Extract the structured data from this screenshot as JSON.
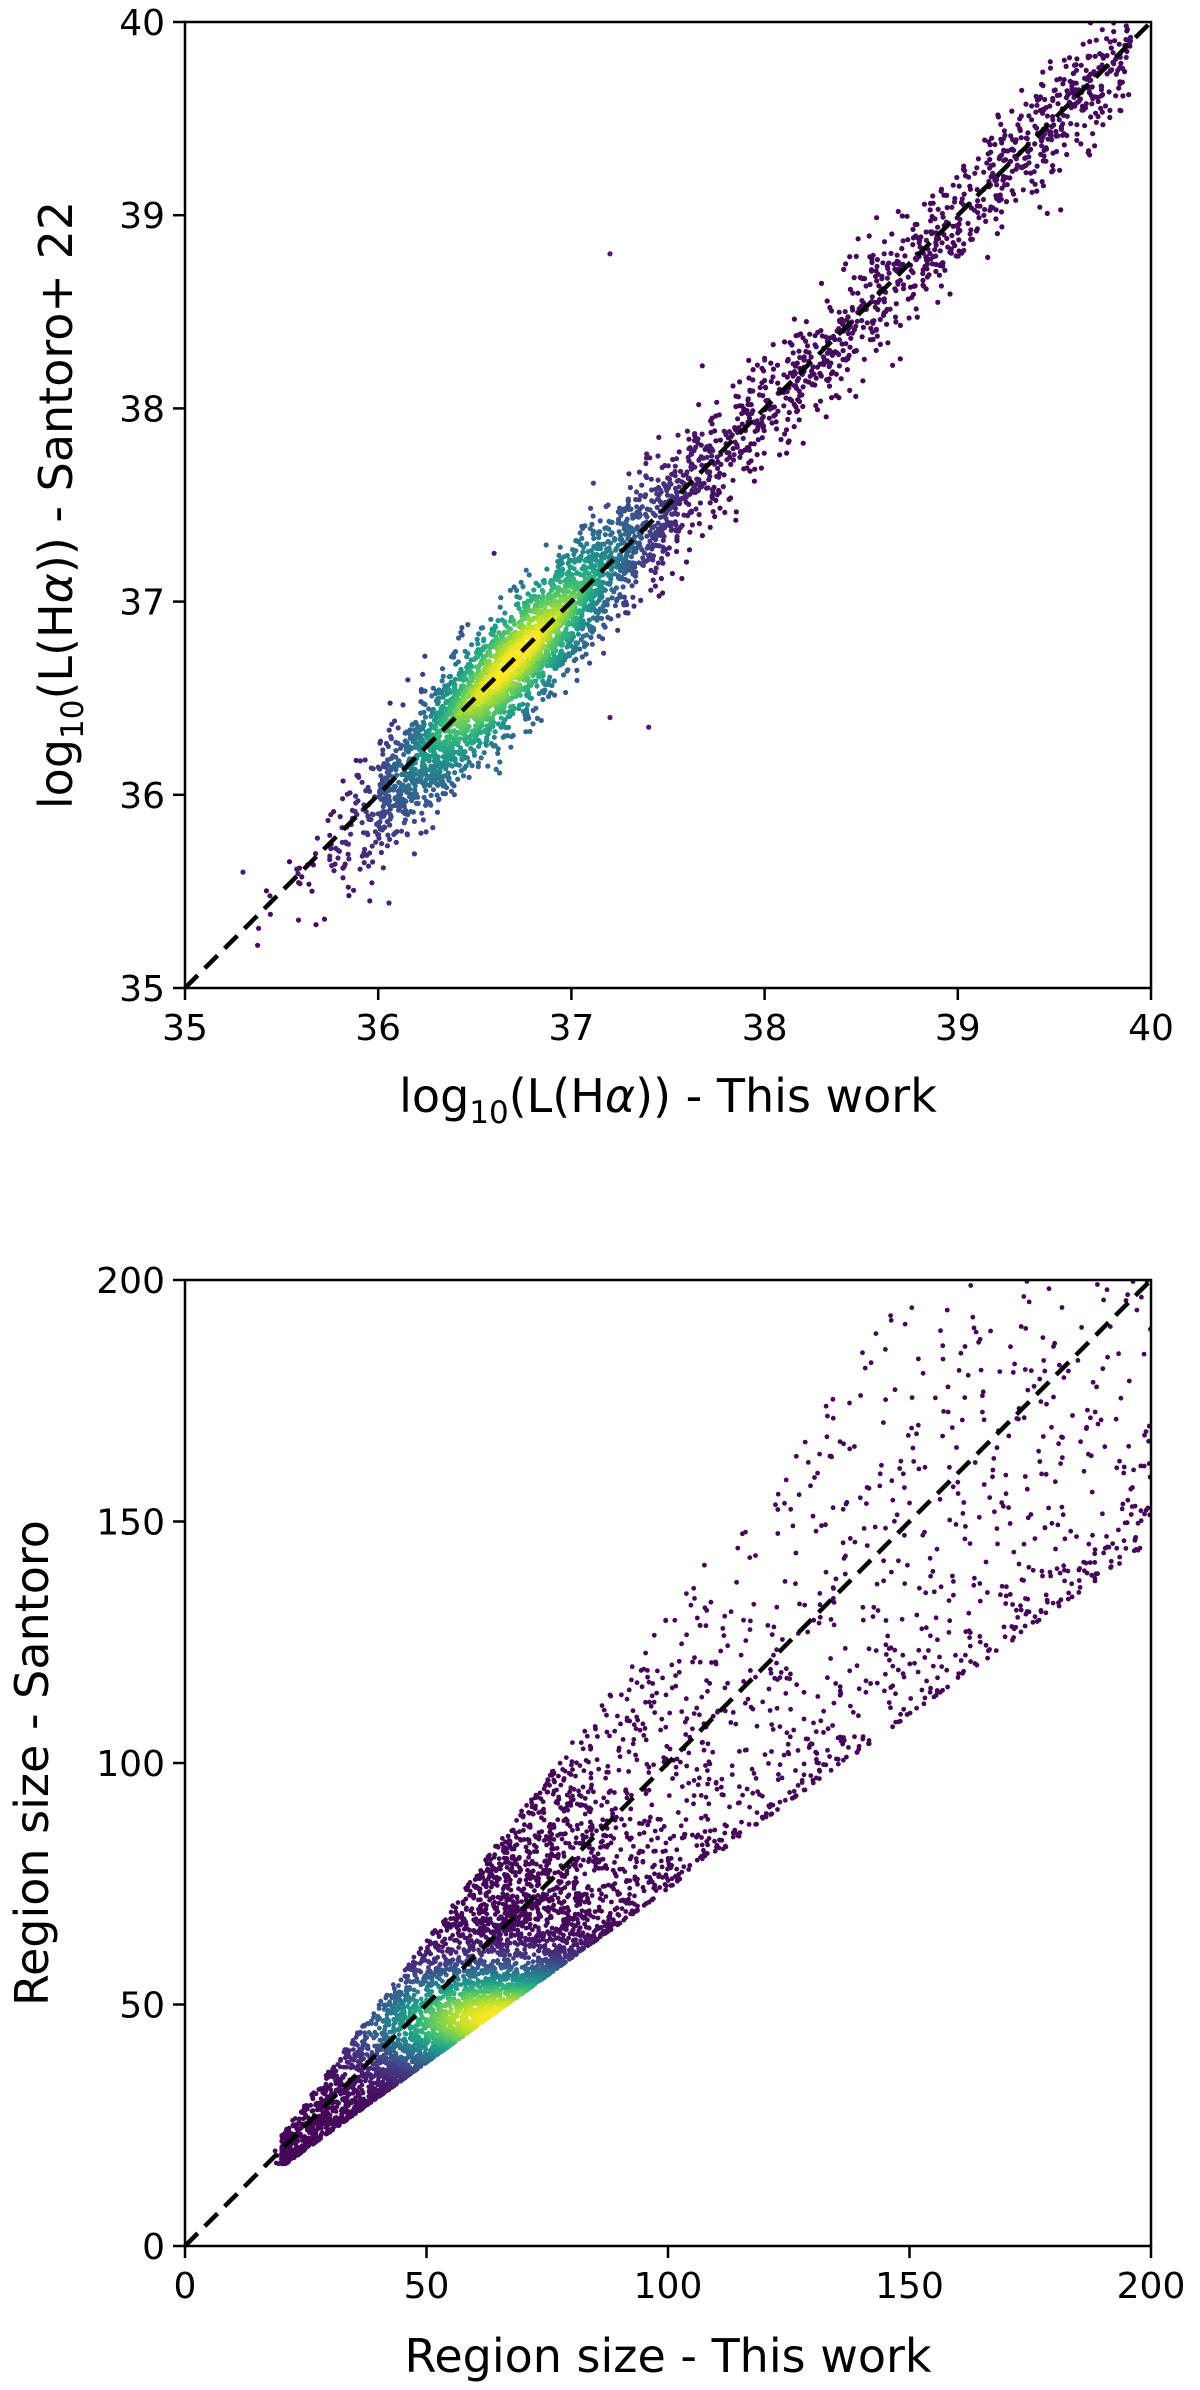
{
  "chart_data": [
    {
      "type": "scatter",
      "title": "",
      "xlabel": {
        "prefix": "log",
        "sub": "10",
        "main": "(L(H",
        "greek": "α",
        "suffix": ")) - This work"
      },
      "ylabel": {
        "prefix": "log",
        "sub": "10",
        "main": "(L(H",
        "greek": "α",
        "suffix": ")) - Santoro+ 22"
      },
      "xlim": [
        35,
        40
      ],
      "ylim": [
        35,
        40
      ],
      "xticks": [
        "35",
        "36",
        "37",
        "38",
        "39",
        "40"
      ],
      "yticks": [
        "35",
        "36",
        "37",
        "38",
        "39",
        "40"
      ],
      "reference_line": {
        "style": "dashed",
        "color": "#000000",
        "from": [
          35,
          40
        ],
        "to": [
          35,
          40
        ]
      },
      "colormap": "viridis (density)",
      "colors": {
        "low": "#440154",
        "mid": "#21918c",
        "high": "#fde725"
      },
      "grid": false,
      "series": [
        {
          "description_of_distribution": "tight cloud along y = x, densest near x≈36.7, y≈36.7",
          "density_peak": [
            36.7,
            36.7
          ],
          "x_extent": [
            35.3,
            39.95
          ],
          "y_extent": [
            35.4,
            39.95
          ],
          "scatter_width_dex": 0.15,
          "outliers": [
            [
              37.2,
              38.8
            ],
            [
              36.6,
              37.25
            ],
            [
              38.0,
              38.25
            ],
            [
              37.4,
              36.35
            ],
            [
              37.2,
              36.4
            ],
            [
              35.3,
              35.6
            ]
          ]
        }
      ]
    },
    {
      "type": "scatter",
      "title": "",
      "xlabel": "Region size - This work",
      "ylabel": "Region size - Santoro",
      "xlim": [
        0,
        200
      ],
      "ylim": [
        0,
        200
      ],
      "xticks": [
        "0",
        "50",
        "100",
        "150",
        "200"
      ],
      "yticks": [
        "0",
        "50",
        "100",
        "150",
        "200"
      ],
      "reference_line": {
        "style": "dashed",
        "color": "#000000",
        "from": [
          0,
          200
        ],
        "to": [
          0,
          200
        ]
      },
      "colormap": "viridis (density)",
      "colors": {
        "low": "#440154",
        "mid": "#21918c",
        "high": "#fde725"
      },
      "grid": false,
      "series": [
        {
          "description_of_distribution": "wedge-shaped cloud starting near (20, 18), mostly below y = x, densest near x≈60, y≈48, widening to large sizes",
          "density_peak": [
            60,
            48
          ],
          "x_extent": [
            18,
            200
          ],
          "y_extent": [
            17,
            200
          ],
          "lower_edge_slope": 0.72,
          "upper_edge_slope": 1.35
        }
      ]
    }
  ]
}
